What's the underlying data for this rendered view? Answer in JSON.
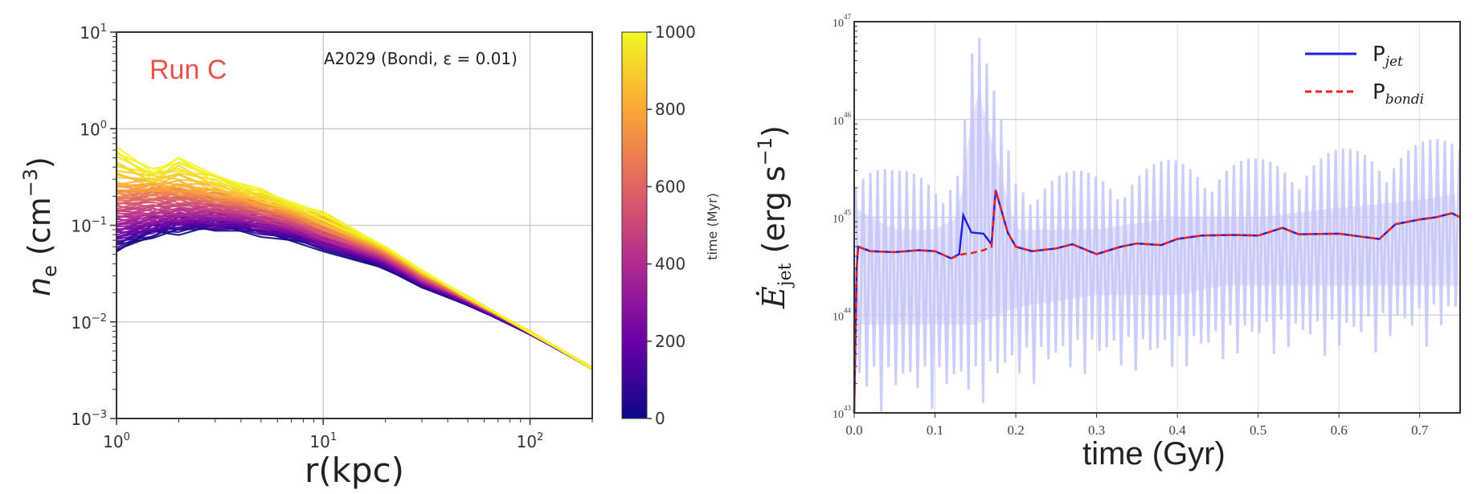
{
  "chart_data": [
    {
      "type": "line",
      "annotation_run": "Run C",
      "annotation_label": "A2029 (Bondi, ε = 0.01)",
      "xlabel": "r(kpc)",
      "ylabel": "n_e (cm^-3)",
      "ylabel_main": "n",
      "ylabel_sub": "e",
      "ylabel_unit": " (cm",
      "ylabel_exp": "−3",
      "ylabel_close": ")",
      "xscale": "log",
      "yscale": "log",
      "xlim": [
        1,
        200
      ],
      "ylim": [
        0.001,
        10
      ],
      "grid": true,
      "x_ticks": [
        {
          "base": "10",
          "exp": "0",
          "value": 1
        },
        {
          "base": "10",
          "exp": "1",
          "value": 10
        },
        {
          "base": "10",
          "exp": "2",
          "value": 100
        }
      ],
      "y_ticks": [
        {
          "base": "10",
          "exp": "−3",
          "value": 0.001
        },
        {
          "base": "10",
          "exp": "−2",
          "value": 0.01
        },
        {
          "base": "10",
          "exp": "−1",
          "value": 0.1
        },
        {
          "base": "10",
          "exp": "0",
          "value": 1
        },
        {
          "base": "10",
          "exp": "1",
          "value": 10
        }
      ],
      "r": [
        1,
        1.5,
        2,
        3,
        5,
        10,
        20,
        30,
        50,
        100,
        200
      ],
      "series": [
        {
          "time": 0,
          "values": [
            0.055,
            0.08,
            0.09,
            0.095,
            0.085,
            0.06,
            0.035,
            0.023,
            0.015,
            0.0075,
            0.0033
          ]
        },
        {
          "time": 200,
          "values": [
            0.08,
            0.1,
            0.11,
            0.11,
            0.1,
            0.07,
            0.04,
            0.025,
            0.016,
            0.0077,
            0.0033
          ]
        },
        {
          "time": 400,
          "values": [
            0.12,
            0.13,
            0.14,
            0.14,
            0.12,
            0.08,
            0.045,
            0.027,
            0.017,
            0.0078,
            0.0033
          ]
        },
        {
          "time": 600,
          "values": [
            0.18,
            0.2,
            0.2,
            0.18,
            0.15,
            0.095,
            0.05,
            0.03,
            0.017,
            0.0078,
            0.0033
          ]
        },
        {
          "time": 800,
          "values": [
            0.25,
            0.26,
            0.25,
            0.22,
            0.18,
            0.11,
            0.055,
            0.032,
            0.018,
            0.0078,
            0.0033
          ]
        },
        {
          "time": 1000,
          "values": [
            0.65,
            0.35,
            0.5,
            0.33,
            0.22,
            0.13,
            0.06,
            0.034,
            0.018,
            0.0078,
            0.0033
          ]
        }
      ],
      "colorbar": {
        "label": "time (Myr)",
        "range": [
          0,
          1000
        ],
        "ticks": [
          "0",
          "200",
          "400",
          "600",
          "800",
          "1000"
        ],
        "colormap": "plasma",
        "stops": [
          "#0d0887",
          "#6a00a8",
          "#b12a90",
          "#e16462",
          "#fca636",
          "#f0f921"
        ]
      },
      "colors": {
        "annotation_run": "#e8534a"
      }
    },
    {
      "type": "line",
      "xlabel": "time (Gyr)",
      "ylabel_main": "Ė",
      "ylabel_sub": "jet",
      "ylabel_unit": "  (erg s",
      "ylabel_exp": "−1",
      "ylabel_close": ")",
      "xscale": "linear",
      "yscale": "log",
      "xlim": [
        0,
        0.75
      ],
      "ylim": [
        1e+43,
        1e+47
      ],
      "grid": true,
      "legend_position": "top-right",
      "x_ticks": [
        "0.0",
        "0.1",
        "0.2",
        "0.3",
        "0.4",
        "0.5",
        "0.6",
        "0.7"
      ],
      "y_ticks": [
        {
          "base": "10",
          "exp": "43",
          "value": 1e+43
        },
        {
          "base": "10",
          "exp": "44",
          "value": 1e+44
        },
        {
          "base": "10",
          "exp": "45",
          "value": 1e+45
        },
        {
          "base": "10",
          "exp": "46",
          "value": 1e+46
        },
        {
          "base": "10",
          "exp": "47",
          "value": 1e+47
        }
      ],
      "x": [
        0.0,
        0.003,
        0.005,
        0.02,
        0.05,
        0.08,
        0.1,
        0.12,
        0.13,
        0.135,
        0.145,
        0.16,
        0.17,
        0.175,
        0.19,
        0.2,
        0.22,
        0.25,
        0.27,
        0.3,
        0.33,
        0.35,
        0.38,
        0.4,
        0.43,
        0.47,
        0.5,
        0.53,
        0.55,
        0.6,
        0.63,
        0.65,
        0.67,
        0.7,
        0.72,
        0.74,
        0.75
      ],
      "series": [
        {
          "name": "P_jet",
          "label": "P",
          "sub": "jet",
          "color": "#2020e0",
          "style": "solid",
          "values": [
            1e+43,
            3e+44,
            5e+44,
            4.5e+44,
            4.4e+44,
            4.6e+44,
            4.5e+44,
            3.8e+44,
            4.2e+44,
            1.05e+45,
            7e+44,
            6.8e+44,
            5.3e+44,
            1.9e+45,
            7e+44,
            5e+44,
            4.5e+44,
            4.8e+44,
            5.3e+44,
            4.2e+44,
            5e+44,
            5.4e+44,
            5.2e+44,
            6e+44,
            6.5e+44,
            6.6e+44,
            6.5e+44,
            7.8e+44,
            6.7e+44,
            6.8e+44,
            6.3e+44,
            6e+44,
            8.5e+44,
            9.5e+44,
            1e+45,
            1.1e+45,
            1e+45
          ]
        },
        {
          "name": "P_bondi",
          "label": "P",
          "sub": "bondi",
          "color": "#ee2020",
          "style": "dashed",
          "values": [
            1e+43,
            3e+44,
            5e+44,
            4.5e+44,
            4.4e+44,
            4.6e+44,
            4.5e+44,
            3.8e+44,
            4.1e+44,
            4.2e+44,
            4.3e+44,
            4.6e+44,
            5e+44,
            1.9e+45,
            7e+44,
            5e+44,
            4.5e+44,
            4.8e+44,
            5.3e+44,
            4.2e+44,
            5e+44,
            5.4e+44,
            5.2e+44,
            6e+44,
            6.5e+44,
            6.6e+44,
            6.5e+44,
            7.8e+44,
            6.7e+44,
            6.8e+44,
            6.3e+44,
            6e+44,
            8.5e+44,
            9.5e+44,
            1e+45,
            1.1e+45,
            1e+45
          ]
        }
      ],
      "background_variability": {
        "color": "#c4c4f8",
        "x": [
          0,
          0.05,
          0.1,
          0.13,
          0.15,
          0.2,
          0.3,
          0.4,
          0.5,
          0.6,
          0.7,
          0.75
        ],
        "upper": [
          5e+45,
          3e+45,
          3e+45,
          4e+45,
          1e+47,
          3e+45,
          3e+45,
          4e+45,
          4e+45,
          5e+45,
          6e+45,
          7e+45
        ],
        "lower": [
          1e+43,
          1e+43,
          1e+43,
          1e+43,
          1e+43,
          1.5e+43,
          2e+43,
          2e+43,
          3e+43,
          3e+43,
          4e+43,
          5e+43
        ]
      }
    }
  ]
}
